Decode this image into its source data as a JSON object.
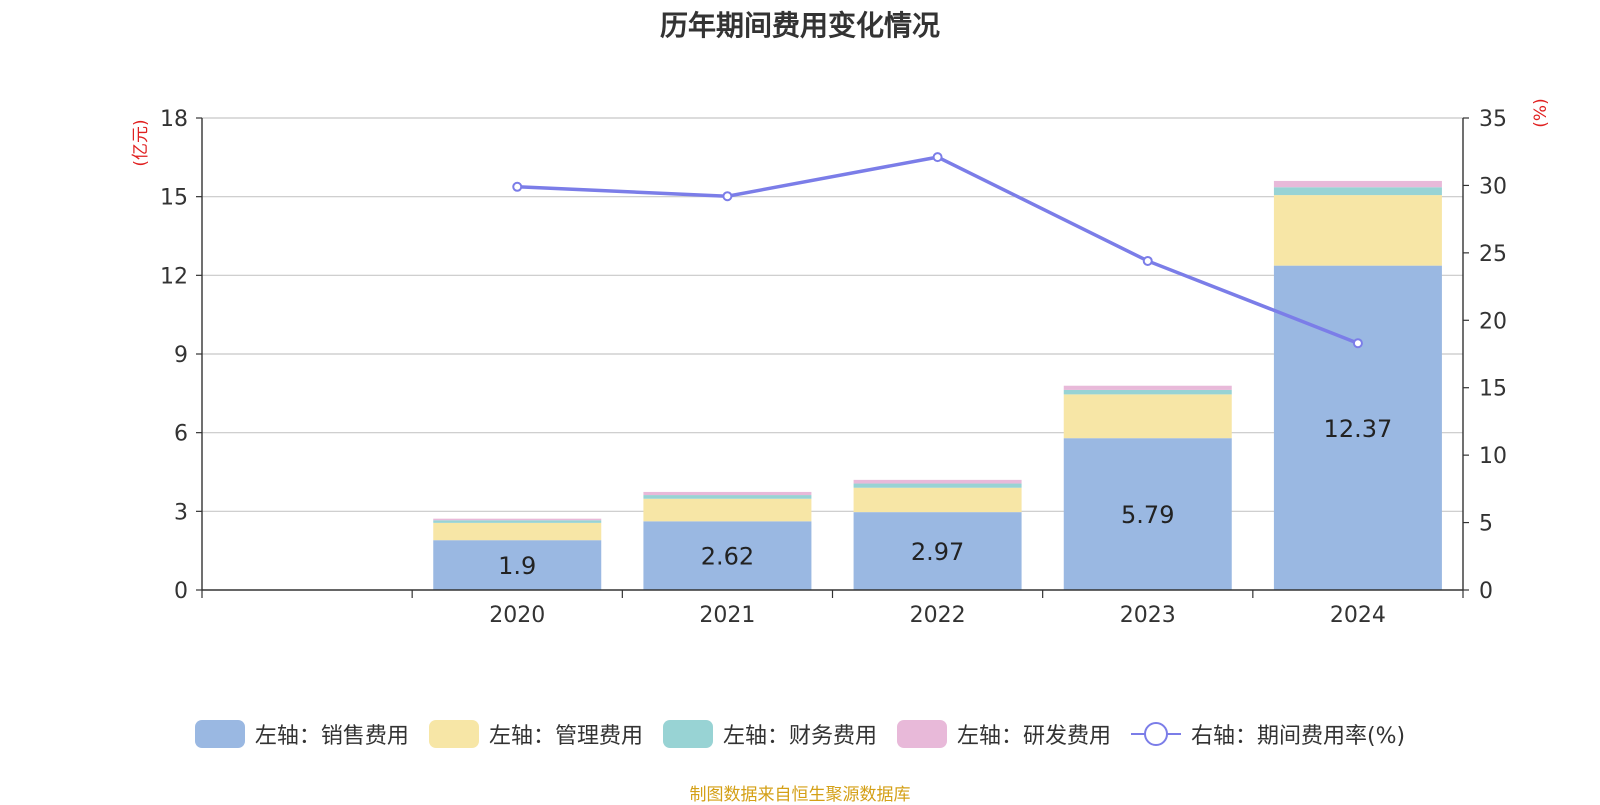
{
  "chart_data": {
    "type": "bar",
    "title": "历年期间费用变化情况",
    "categories": [
      "",
      "2020",
      "2021",
      "2022",
      "2023",
      "2024"
    ],
    "series": [
      {
        "name": "左轴：销售费用",
        "type": "bar",
        "axis": "left",
        "color": "#9ab8e2",
        "values": [
          null,
          1.9,
          2.62,
          2.97,
          5.79,
          12.37
        ],
        "labels": [
          "",
          "1.9",
          "2.62",
          "2.97",
          "5.79",
          "12.37"
        ]
      },
      {
        "name": "左轴：管理费用",
        "type": "bar",
        "axis": "left",
        "color": "#f7e6a6",
        "values": [
          null,
          0.66,
          0.86,
          0.93,
          1.67,
          2.69
        ]
      },
      {
        "name": "左轴：财务费用",
        "type": "bar",
        "axis": "left",
        "color": "#98d3d4",
        "values": [
          null,
          0.1,
          0.14,
          0.16,
          0.17,
          0.3
        ]
      },
      {
        "name": "左轴：研发费用",
        "type": "bar",
        "axis": "left",
        "color": "#e8b9d9",
        "values": [
          null,
          0.06,
          0.12,
          0.14,
          0.16,
          0.24
        ]
      },
      {
        "name": "右轴：期间费用率(%)",
        "type": "line",
        "axis": "right",
        "color": "#7b7de8",
        "values": [
          null,
          29.9,
          29.2,
          32.1,
          24.4,
          18.3
        ]
      }
    ],
    "left_axis": {
      "label": "(亿元)",
      "ylim": [
        0,
        18
      ],
      "ticks": [
        "0",
        "3",
        "6",
        "9",
        "12",
        "15",
        "18"
      ]
    },
    "right_axis": {
      "label": "(%)",
      "ylim": [
        0,
        35
      ],
      "ticks": [
        "0",
        "5",
        "10",
        "15",
        "20",
        "25",
        "30",
        "35"
      ]
    },
    "grid": true,
    "legend_position": "bottom"
  },
  "footer": "制图数据来自恒生聚源数据库"
}
